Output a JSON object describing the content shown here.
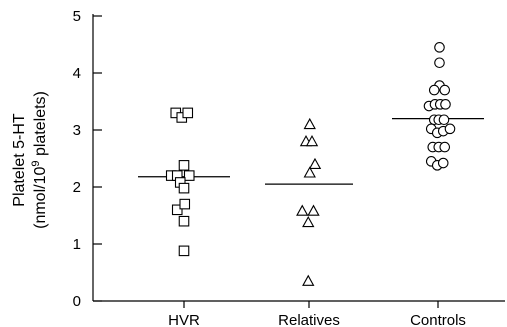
{
  "chart_data": {
    "type": "scatter",
    "ylabel_line1": "Platelet 5-HT",
    "ylabel_line2_prefix": "(nmol/10",
    "ylabel_line2_sup": "9",
    "ylabel_line2_suffix": " platelets)",
    "ylim": [
      0,
      5
    ],
    "yticks": [
      "0",
      "1",
      "2",
      "3",
      "4",
      "5"
    ],
    "categories": [
      "HVR",
      "Relatives",
      "Controls"
    ],
    "grid": false,
    "series": [
      {
        "category": "HVR",
        "marker": "square",
        "mean": 2.18,
        "points": [
          [
            -0.55,
            3.3
          ],
          [
            -0.15,
            3.22
          ],
          [
            0.25,
            3.3
          ],
          [
            0.0,
            2.38
          ],
          [
            -0.85,
            2.2
          ],
          [
            -0.45,
            2.2
          ],
          [
            0.35,
            2.2
          ],
          [
            -0.25,
            2.08
          ],
          [
            0.0,
            1.98
          ],
          [
            -0.45,
            1.6
          ],
          [
            0.05,
            1.7
          ],
          [
            0.0,
            1.4
          ],
          [
            0.0,
            0.88
          ]
        ]
      },
      {
        "category": "Relatives",
        "marker": "triangle",
        "mean": 2.05,
        "points": [
          [
            0.05,
            3.1
          ],
          [
            -0.2,
            2.8
          ],
          [
            0.2,
            2.8
          ],
          [
            0.4,
            2.4
          ],
          [
            0.05,
            2.25
          ],
          [
            -0.45,
            1.58
          ],
          [
            0.3,
            1.58
          ],
          [
            -0.05,
            1.38
          ],
          [
            -0.05,
            0.35
          ]
        ]
      },
      {
        "category": "Controls",
        "marker": "circle",
        "mean": 3.2,
        "points": [
          [
            0.1,
            4.45
          ],
          [
            0.1,
            4.18
          ],
          [
            0.1,
            3.78
          ],
          [
            -0.25,
            3.7
          ],
          [
            0.45,
            3.7
          ],
          [
            -0.6,
            3.42
          ],
          [
            -0.2,
            3.45
          ],
          [
            0.15,
            3.45
          ],
          [
            0.5,
            3.45
          ],
          [
            -0.25,
            3.18
          ],
          [
            0.05,
            3.18
          ],
          [
            0.4,
            3.18
          ],
          [
            -0.45,
            3.02
          ],
          [
            -0.05,
            2.95
          ],
          [
            0.35,
            2.98
          ],
          [
            0.8,
            3.02
          ],
          [
            -0.35,
            2.7
          ],
          [
            0.05,
            2.7
          ],
          [
            0.45,
            2.7
          ],
          [
            -0.45,
            2.45
          ],
          [
            -0.05,
            2.38
          ],
          [
            0.35,
            2.42
          ]
        ]
      }
    ]
  }
}
